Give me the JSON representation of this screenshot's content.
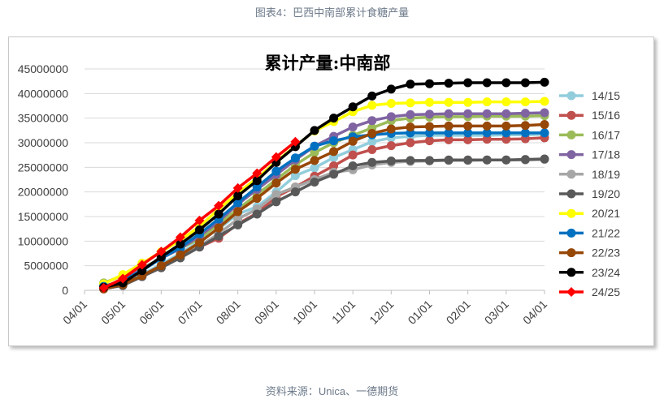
{
  "caption": "图表4：巴西中南部累计食糖产量",
  "source": "资料来源：Unica、一德期货",
  "chart_data": {
    "type": "line",
    "title": "累计产量:中南部",
    "xlabel": "",
    "ylabel": "",
    "ylim": [
      0,
      45000000
    ],
    "yticks": [
      "0",
      "5000000",
      "10000000",
      "15000000",
      "20000000",
      "25000000",
      "30000000",
      "35000000",
      "40000000",
      "45000000"
    ],
    "xticks": [
      "04/01",
      "05/01",
      "06/01",
      "07/01",
      "08/01",
      "09/01",
      "10/01",
      "11/01",
      "12/01",
      "01/01",
      "02/01",
      "03/01",
      "04/01"
    ],
    "x_note": "semi-monthly points, first at 04/16, last at 04/01",
    "grid": true,
    "legend_position": "right",
    "units_in_millions": true,
    "series": [
      {
        "name": "14/15",
        "color": "#92CDDC",
        "values": [
          0.5,
          1.5,
          3.2,
          5.3,
          7.5,
          10,
          12.5,
          15.5,
          17.0,
          20,
          23.3,
          24.9,
          27.0,
          28.6,
          30.2,
          31.0,
          31.3,
          31.5,
          31.5,
          31.5,
          31.5,
          31.6,
          31.6,
          31.7
        ]
      },
      {
        "name": "15/16",
        "color": "#C0504D",
        "values": [
          0.3,
          1.0,
          2.8,
          4.6,
          6.7,
          8.8,
          10.6,
          13.5,
          15.7,
          19,
          21,
          23.2,
          25.3,
          27.5,
          28.6,
          29.4,
          30.0,
          30.4,
          30.6,
          30.6,
          30.7,
          30.7,
          30.8,
          31.0
        ]
      },
      {
        "name": "16/17",
        "color": "#9BBB59",
        "values": [
          1.5,
          3.0,
          4.5,
          6.5,
          8.5,
          10.5,
          13.5,
          16.5,
          19.5,
          22.5,
          25.5,
          28.0,
          30.0,
          31.5,
          33.0,
          34.5,
          35.0,
          35.2,
          35.3,
          35.3,
          35.4,
          35.4,
          35.4,
          35.5
        ]
      },
      {
        "name": "17/18",
        "color": "#8064A2",
        "values": [
          0.8,
          2.0,
          4.3,
          6.5,
          8.5,
          11,
          14,
          17.5,
          20.5,
          23.5,
          26.5,
          29.3,
          31.3,
          33.2,
          34.5,
          35.3,
          35.7,
          35.8,
          35.9,
          35.9,
          35.9,
          35.9,
          36.0,
          36.1
        ]
      },
      {
        "name": "18/19",
        "color": "#A6A6A6",
        "values": [
          0.4,
          1.2,
          2.8,
          4.8,
          6.8,
          9.0,
          11.5,
          14.5,
          16.5,
          19.5,
          21.0,
          22.5,
          24.0,
          24.5,
          25.5,
          26.0,
          26.2,
          26.3,
          26.4,
          26.4,
          26.5,
          26.5,
          26.5,
          26.6
        ]
      },
      {
        "name": "19/20",
        "color": "#595959",
        "values": [
          0.3,
          1.0,
          2.8,
          4.6,
          6.6,
          8.8,
          11.0,
          13.3,
          15.5,
          18.0,
          20.0,
          22.0,
          23.6,
          25.3,
          26.0,
          26.3,
          26.4,
          26.4,
          26.5,
          26.5,
          26.5,
          26.5,
          26.6,
          26.7
        ]
      },
      {
        "name": "20/21",
        "color": "#FFFF00",
        "values": [
          1.3,
          3.2,
          5.5,
          7.8,
          10.2,
          13.0,
          16.5,
          19.8,
          22.8,
          26.2,
          29.3,
          32.4,
          34.3,
          36.3,
          37.6,
          38.0,
          38.1,
          38.2,
          38.2,
          38.2,
          38.3,
          38.3,
          38.3,
          38.4
        ]
      },
      {
        "name": "21/22",
        "color": "#0070C0",
        "values": [
          0.8,
          2.0,
          4.0,
          6.5,
          8.7,
          11.5,
          14.5,
          17.8,
          21.0,
          24.2,
          26.9,
          29.3,
          30.4,
          31.2,
          31.6,
          31.9,
          32.0,
          32.0,
          32.0,
          32.0,
          32.0,
          32.0,
          32.0,
          32.0
        ]
      },
      {
        "name": "22/23",
        "color": "#974706",
        "values": [
          0.3,
          1.2,
          3.0,
          5.0,
          7.2,
          9.7,
          12.7,
          16.0,
          18.7,
          21.8,
          24.6,
          26.4,
          28.2,
          30.3,
          31.9,
          32.8,
          33.2,
          33.3,
          33.4,
          33.4,
          33.4,
          33.4,
          33.5,
          33.7
        ]
      },
      {
        "name": "23/24",
        "color": "#000000",
        "values": [
          0.6,
          1.5,
          4.0,
          6.8,
          9.4,
          12.3,
          15.5,
          19.2,
          22.3,
          26.0,
          29.2,
          32.5,
          35.0,
          37.3,
          39.5,
          40.9,
          41.9,
          42.0,
          42.1,
          42.2,
          42.2,
          42.2,
          42.2,
          42.3
        ]
      },
      {
        "name": "24/25",
        "color": "#FF0000",
        "marker": "diamond",
        "values": [
          0.5,
          2.4,
          5.2,
          7.9,
          10.8,
          14.2,
          17.2,
          20.8,
          23.8,
          27.1,
          30.2
        ]
      }
    ]
  }
}
